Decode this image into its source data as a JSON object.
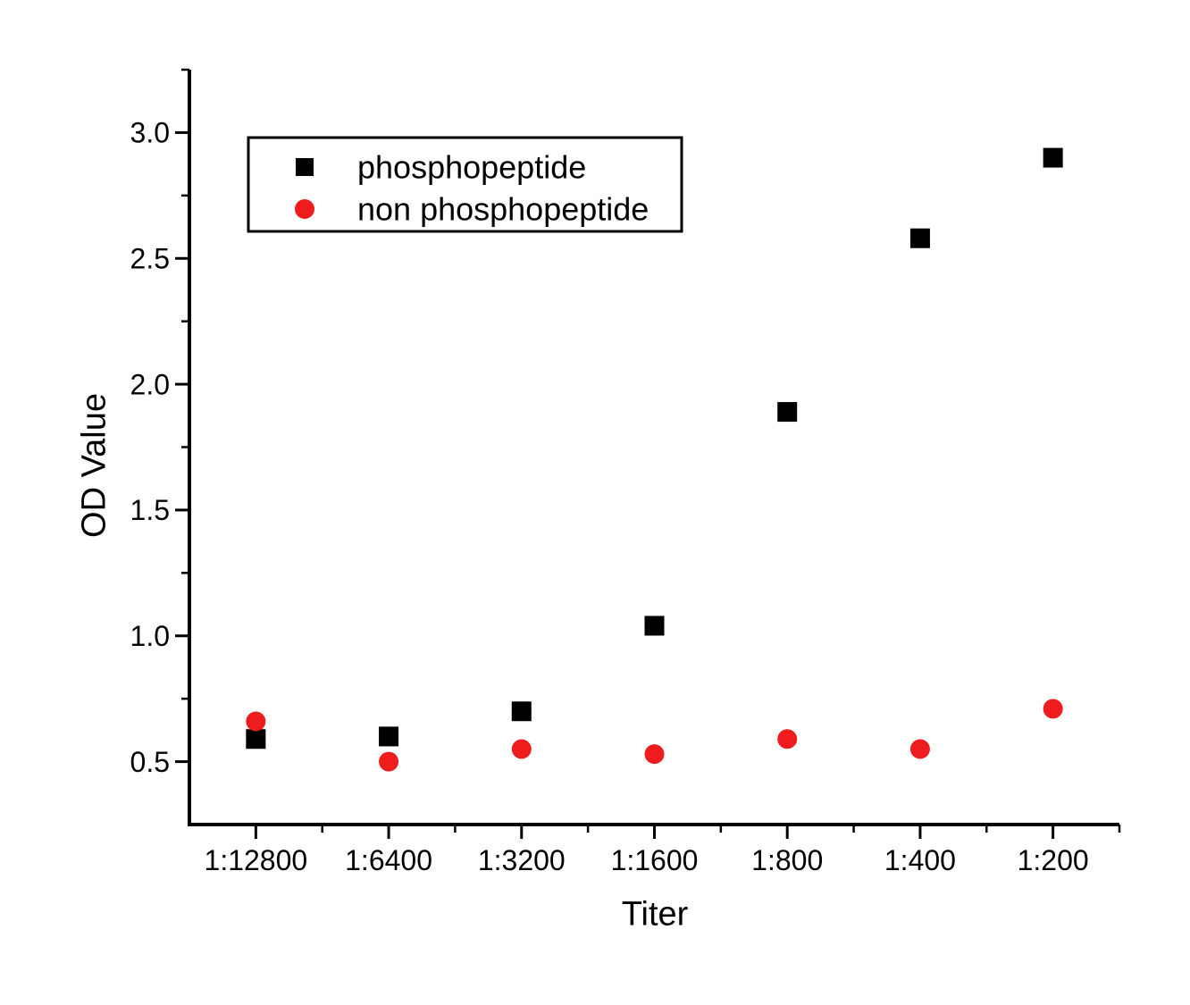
{
  "figure": {
    "background": "#ffffff",
    "axis_color": "#000000"
  },
  "chart_data": {
    "type": "scatter",
    "title": "",
    "xlabel": "Titer",
    "ylabel": "OD Value",
    "categories": [
      "1:12800",
      "1:6400",
      "1:3200",
      "1:1600",
      "1:800",
      "1:400",
      "1:200"
    ],
    "series": [
      {
        "name": "phosphopeptide",
        "marker": "square",
        "color": "#000000",
        "values": [
          0.59,
          0.6,
          0.7,
          1.04,
          1.89,
          2.58,
          2.9
        ]
      },
      {
        "name": "non phosphopeptide",
        "marker": "circle",
        "color": "#ee1c1c",
        "values": [
          0.66,
          0.5,
          0.55,
          0.53,
          0.59,
          0.55,
          0.71
        ]
      }
    ],
    "ylim": [
      0.25,
      3.25
    ],
    "y_major_ticks": [
      0.5,
      1.0,
      1.5,
      2.0,
      2.5,
      3.0
    ],
    "y_tick_labels": [
      "0.5",
      "1.0",
      "1.5",
      "2.0",
      "2.5",
      "3.0"
    ],
    "y_minor_step": 0.25,
    "grid": false,
    "legend_position": "top-left-inside",
    "tick_direction": "out"
  }
}
